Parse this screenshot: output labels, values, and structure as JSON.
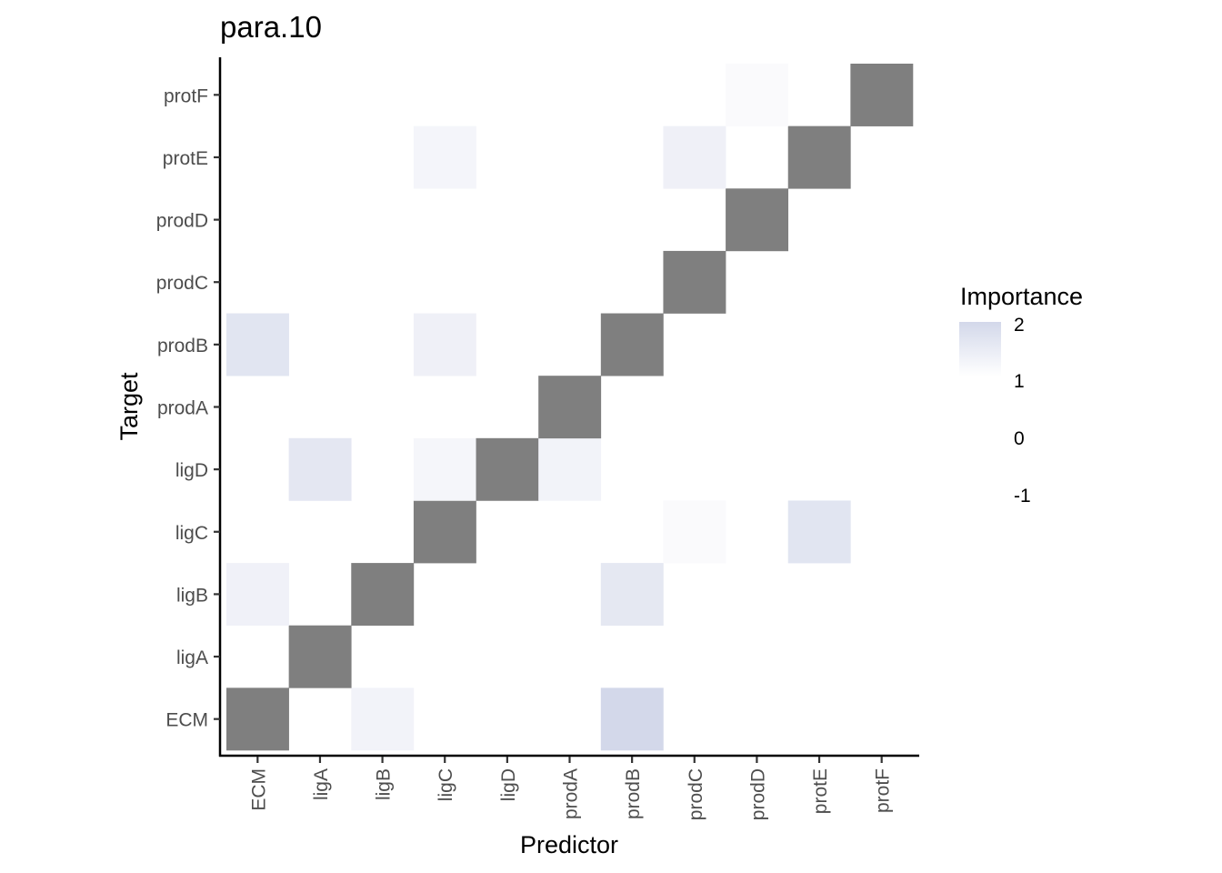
{
  "chart_data": {
    "type": "heatmap",
    "title": "para.10",
    "xlabel": "Predictor",
    "ylabel": "Target",
    "x_categories": [
      "ECM",
      "ligA",
      "ligB",
      "ligC",
      "ligD",
      "prodA",
      "prodB",
      "prodC",
      "prodD",
      "protE",
      "protF"
    ],
    "y_categories": [
      "ECM",
      "ligA",
      "ligB",
      "ligC",
      "ligD",
      "prodA",
      "prodB",
      "prodC",
      "prodD",
      "protE",
      "protF"
    ],
    "values": [
      [
        null,
        0,
        0.6,
        0,
        0,
        0,
        2.05,
        0,
        0,
        0,
        0
      ],
      [
        0,
        null,
        0,
        0,
        0,
        0,
        0,
        0,
        0,
        0,
        0
      ],
      [
        0.7,
        0,
        null,
        0,
        0,
        0,
        1.2,
        0,
        0,
        0,
        0
      ],
      [
        0,
        0,
        0,
        null,
        0,
        0,
        0,
        0.25,
        0,
        1.35,
        0
      ],
      [
        0,
        1.25,
        0,
        0.45,
        null,
        0.6,
        0,
        0,
        0,
        0,
        0
      ],
      [
        0,
        0,
        0,
        0,
        0,
        null,
        0,
        0,
        0,
        0,
        0
      ],
      [
        1.35,
        0,
        0,
        0.75,
        0,
        0,
        null,
        0,
        0,
        0,
        0
      ],
      [
        0,
        0,
        0,
        0,
        0,
        0,
        0,
        null,
        0,
        0,
        0
      ],
      [
        0,
        0,
        0,
        0,
        0,
        0,
        0,
        0,
        null,
        0,
        0
      ],
      [
        0,
        0,
        0,
        0.5,
        0,
        0,
        0,
        0.75,
        0,
        null,
        0
      ],
      [
        0,
        0,
        0,
        0,
        0,
        0,
        0,
        0,
        0.25,
        0,
        null
      ]
    ],
    "diagonal_color": "#7f7f7f",
    "color_low": "#ffffff",
    "color_high": "#d3d8ea",
    "legend": {
      "title": "Importance",
      "position": "right",
      "ticks": [
        "2",
        "1",
        "0",
        "-1"
      ],
      "range": [
        -1,
        2
      ]
    },
    "grid": false
  }
}
